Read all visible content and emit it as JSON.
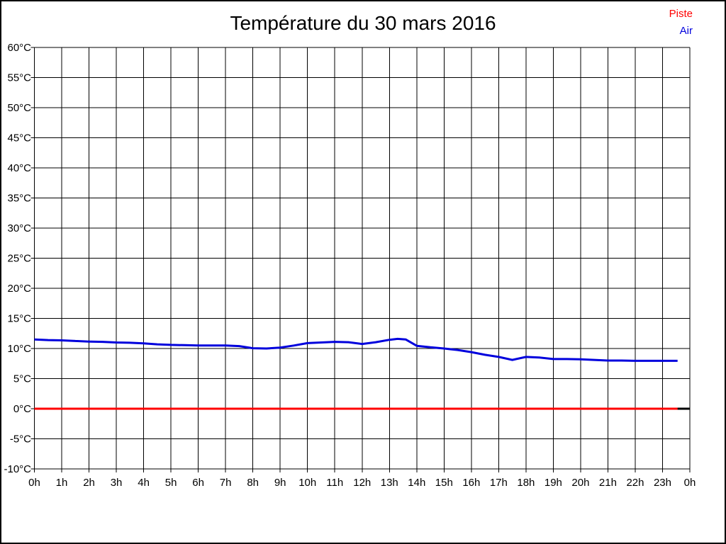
{
  "page": {
    "background": "#ffffff",
    "frame_color": "#000000"
  },
  "chart_data": {
    "type": "line",
    "title": "Température du 30 mars 2016",
    "xlabel": "",
    "ylabel": "",
    "xlim": [
      0,
      24
    ],
    "ylim": [
      -10,
      60
    ],
    "x_tick_labels": [
      "0h",
      "1h",
      "2h",
      "3h",
      "4h",
      "5h",
      "6h",
      "7h",
      "8h",
      "9h",
      "10h",
      "11h",
      "12h",
      "13h",
      "14h",
      "15h",
      "16h",
      "17h",
      "18h",
      "19h",
      "20h",
      "21h",
      "22h",
      "23h",
      "0h"
    ],
    "y_tick_labels": [
      "60°C",
      "55°C",
      "50°C",
      "45°C",
      "40°C",
      "35°C",
      "30°C",
      "25°C",
      "20°C",
      "15°C",
      "10°C",
      "5°C",
      "0°C",
      "-5°C",
      "-10°C"
    ],
    "grid": true,
    "grid_color": "#000000",
    "legend_position": "top-right",
    "legend": [
      {
        "name": "Piste",
        "color": "#ff0000"
      },
      {
        "name": "Air",
        "color": "#0000dd"
      }
    ],
    "zero_line": {
      "value": 0,
      "color": "#000000",
      "width": 3
    },
    "series": [
      {
        "name": "Piste",
        "color": "#ff0000",
        "width": 3,
        "x": [
          0,
          23.55
        ],
        "y": [
          0,
          0
        ]
      },
      {
        "name": "Air",
        "color": "#0000dd",
        "width": 3,
        "x": [
          0,
          0.5,
          1,
          1.5,
          2,
          2.5,
          3,
          3.5,
          4,
          4.5,
          5,
          5.5,
          6,
          6.5,
          7,
          7.5,
          8,
          8.5,
          9,
          9.5,
          10,
          10.5,
          11,
          11.5,
          12,
          12.5,
          13,
          13.3,
          13.6,
          14,
          14.5,
          15,
          15.5,
          16,
          16.5,
          17,
          17.5,
          18,
          18.5,
          19,
          19.5,
          20,
          20.5,
          21,
          21.5,
          22,
          22.5,
          23,
          23.55
        ],
        "y": [
          11.5,
          11.4,
          11.35,
          11.25,
          11.15,
          11.1,
          11.0,
          10.95,
          10.85,
          10.7,
          10.6,
          10.55,
          10.5,
          10.5,
          10.5,
          10.4,
          10.05,
          10.0,
          10.15,
          10.5,
          10.9,
          11.0,
          11.1,
          11.05,
          10.75,
          11.05,
          11.45,
          11.6,
          11.5,
          10.45,
          10.2,
          10.0,
          9.75,
          9.4,
          8.95,
          8.6,
          8.1,
          8.6,
          8.5,
          8.25,
          8.25,
          8.2,
          8.1,
          8.0,
          8.0,
          7.95,
          7.95,
          7.95,
          7.95
        ]
      }
    ]
  }
}
